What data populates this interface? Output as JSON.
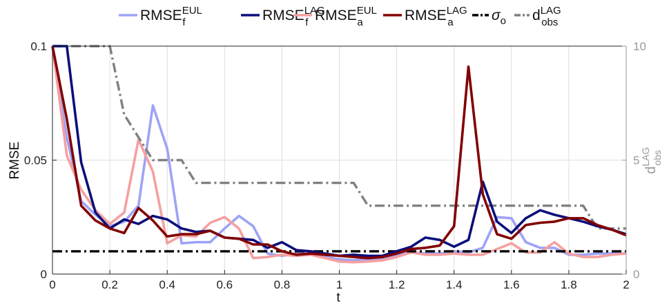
{
  "chart_data": {
    "type": "line",
    "title": "",
    "xlabel": "t",
    "ylabel": "RMSE",
    "ylabel_right": "d_obs^LAG",
    "xlim": [
      0,
      2
    ],
    "ylim": [
      0,
      0.1
    ],
    "ylim_right": [
      0,
      10
    ],
    "xticks": [
      "0",
      "0.2",
      "0.4",
      "0.6",
      "0.8",
      "1",
      "1.2",
      "1.4",
      "1.6",
      "1.8",
      "2"
    ],
    "yticks": [
      "0",
      "0.05",
      "0.1"
    ],
    "yticks_right": [
      "0",
      "5",
      "10"
    ],
    "grid": true,
    "legend_position": "top",
    "x": [
      0,
      0.05,
      0.1,
      0.15,
      0.2,
      0.25,
      0.3,
      0.35,
      0.4,
      0.45,
      0.5,
      0.55,
      0.6,
      0.65,
      0.7,
      0.75,
      0.8,
      0.85,
      0.9,
      0.95,
      1.0,
      1.05,
      1.1,
      1.15,
      1.2,
      1.25,
      1.3,
      1.35,
      1.4,
      1.45,
      1.5,
      1.55,
      1.6,
      1.65,
      1.7,
      1.75,
      1.8,
      1.85,
      1.9,
      1.95,
      2.0
    ],
    "series": [
      {
        "name": "RMSE_f^EUL",
        "label_base": "RMSE",
        "label_sub": "f",
        "label_sup": "EUL",
        "color": "#9da3f5",
        "axis": "left",
        "values": [
          0.1,
          0.06,
          0.032,
          0.026,
          0.021,
          0.023,
          0.03,
          0.074,
          0.055,
          0.0135,
          0.014,
          0.014,
          0.02,
          0.0255,
          0.021,
          0.009,
          0.008,
          0.009,
          0.009,
          0.0075,
          0.0065,
          0.006,
          0.0065,
          0.007,
          0.0085,
          0.0095,
          0.009,
          0.009,
          0.01,
          0.0095,
          0.0115,
          0.025,
          0.0245,
          0.014,
          0.0115,
          0.0115,
          0.0085,
          0.0085,
          0.009,
          0.009,
          0.009
        ]
      },
      {
        "name": "RMSE_f^LAG",
        "label_base": "RMSE",
        "label_sub": "f",
        "label_sup": "LAG",
        "color": "#0b0f7a",
        "axis": "left",
        "values": [
          0.1,
          0.1,
          0.049,
          0.027,
          0.02,
          0.024,
          0.022,
          0.0255,
          0.024,
          0.02,
          0.0185,
          0.019,
          0.016,
          0.0155,
          0.015,
          0.0115,
          0.014,
          0.0105,
          0.01,
          0.009,
          0.008,
          0.0085,
          0.008,
          0.008,
          0.01,
          0.012,
          0.016,
          0.015,
          0.012,
          0.015,
          0.0405,
          0.023,
          0.018,
          0.0245,
          0.028,
          0.026,
          0.0245,
          0.023,
          0.021,
          0.0195,
          0.0175
        ]
      },
      {
        "name": "RMSE_a^EUL",
        "label_base": "RMSE",
        "label_sub": "a",
        "label_sup": "EUL",
        "color": "#f5a0a0",
        "axis": "left",
        "values": [
          0.1,
          0.052,
          0.037,
          0.028,
          0.022,
          0.027,
          0.059,
          0.045,
          0.0135,
          0.017,
          0.0165,
          0.0225,
          0.025,
          0.02,
          0.007,
          0.0075,
          0.0085,
          0.008,
          0.0085,
          0.007,
          0.0055,
          0.0052,
          0.0055,
          0.006,
          0.0075,
          0.0095,
          0.0085,
          0.0085,
          0.009,
          0.0085,
          0.0085,
          0.011,
          0.0135,
          0.0095,
          0.0095,
          0.014,
          0.009,
          0.0075,
          0.0075,
          0.0085,
          0.009
        ]
      },
      {
        "name": "RMSE_a^LAG",
        "label_base": "RMSE",
        "label_sub": "a",
        "label_sup": "LAG",
        "color": "#820000",
        "axis": "left",
        "values": [
          0.1,
          0.068,
          0.03,
          0.0235,
          0.02,
          0.018,
          0.029,
          0.0235,
          0.0165,
          0.0175,
          0.0175,
          0.019,
          0.016,
          0.0155,
          0.013,
          0.013,
          0.01,
          0.0085,
          0.009,
          0.0085,
          0.008,
          0.0075,
          0.007,
          0.0075,
          0.009,
          0.011,
          0.0115,
          0.0125,
          0.021,
          0.091,
          0.035,
          0.0175,
          0.0155,
          0.0215,
          0.0225,
          0.023,
          0.0245,
          0.0245,
          0.0215,
          0.0195,
          0.017
        ]
      },
      {
        "name": "σ_o",
        "label_base": "σ",
        "label_sub": "o",
        "label_sup": "",
        "color": "#000000",
        "axis": "left",
        "dash": "dashdot",
        "values": [
          0.01,
          0.01,
          0.01,
          0.01,
          0.01,
          0.01,
          0.01,
          0.01,
          0.01,
          0.01,
          0.01,
          0.01,
          0.01,
          0.01,
          0.01,
          0.01,
          0.01,
          0.01,
          0.01,
          0.01,
          0.01,
          0.01,
          0.01,
          0.01,
          0.01,
          0.01,
          0.01,
          0.01,
          0.01,
          0.01,
          0.01,
          0.01,
          0.01,
          0.01,
          0.01,
          0.01,
          0.01,
          0.01,
          0.01,
          0.01,
          0.01
        ]
      },
      {
        "name": "d_obs^LAG",
        "label_base": "d",
        "label_sub": "obs",
        "label_sup": "LAG",
        "color": "#808080",
        "axis": "right",
        "dash": "dashdot",
        "values": [
          10,
          10,
          10,
          10,
          10,
          7,
          6,
          5,
          5,
          5,
          4,
          4,
          4,
          4,
          4,
          4,
          4,
          4,
          4,
          4,
          4,
          4,
          3,
          3,
          3,
          3,
          3,
          3,
          3,
          3,
          3,
          3,
          3,
          3,
          3,
          3,
          3,
          3,
          2,
          2,
          2
        ]
      }
    ]
  }
}
